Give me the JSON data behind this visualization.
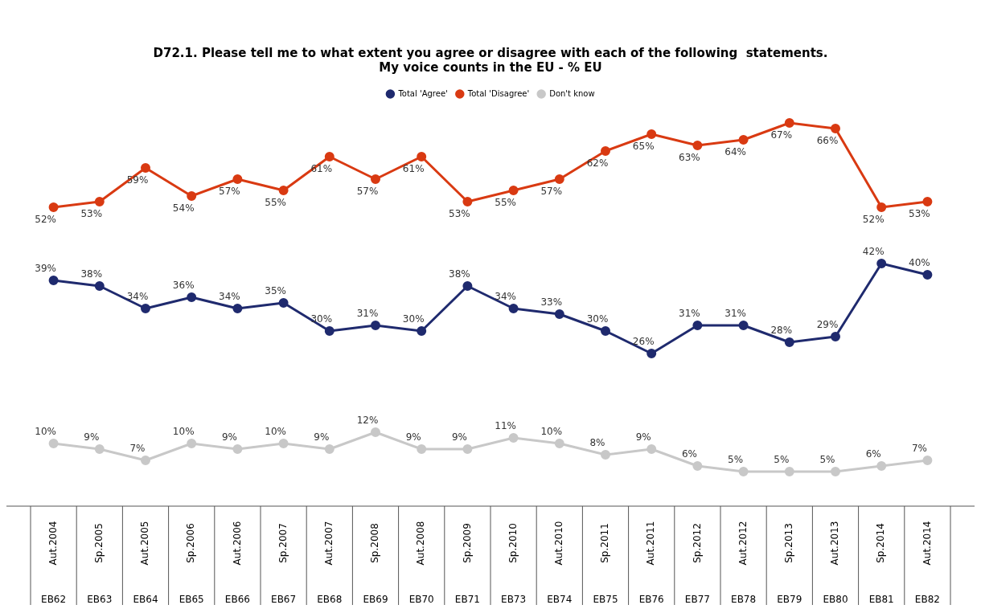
{
  "chart_data": {
    "type": "line",
    "title": "D72.1. Please tell me to what extent you agree or disagree with each of the following  statements.\nMy voice counts in the EU - % EU",
    "categories": [
      "Aut.2004\nEB62",
      "Sp.2005\nEB63",
      "Aut.2005\nEB64",
      "Sp.2006\nEB65",
      "Aut.2006\nEB66",
      "Sp.2007\nEB67",
      "Aut.2007\nEB68",
      "Sp.2008\nEB69",
      "Aut.2008\nEB70",
      "Sp.2009\nEB71",
      "Sp.2010\nEB73",
      "Aut.2010\nEB74",
      "Sp.2011\nEB75",
      "Aut.2011\nEB76",
      "Sp.2012\nEB77",
      "Aut.2012\nEB78",
      "Sp.2013\nEB79",
      "Aut.2013\nEB80",
      "Sp.2014\nEB81",
      "Aut.2014\nEB82"
    ],
    "series": [
      {
        "name": "Total 'Agree'",
        "color": "#1f2a6e",
        "values": [
          39,
          38,
          34,
          36,
          34,
          35,
          30,
          31,
          30,
          38,
          34,
          33,
          30,
          26,
          31,
          31,
          28,
          29,
          42,
          40
        ],
        "value_labels": [
          "39%",
          "38%",
          "34%",
          "36%",
          "34%",
          "35%",
          "30%",
          "31%",
          "30%",
          "38%",
          "34%",
          "33%",
          "30%",
          "26%",
          "31%",
          "31%",
          "28%",
          "29%",
          "42%",
          "40%"
        ]
      },
      {
        "name": "Total 'Disagree'",
        "color": "#d93a12",
        "values": [
          52,
          53,
          59,
          54,
          57,
          55,
          61,
          57,
          61,
          53,
          55,
          57,
          62,
          65,
          63,
          64,
          67,
          66,
          52,
          53
        ],
        "value_labels": [
          "52%",
          "53%",
          "59%",
          "54%",
          "57%",
          "55%",
          "61%",
          "57%",
          "61%",
          "53%",
          "55%",
          "57%",
          "62%",
          "65%",
          "63%",
          "64%",
          "67%",
          "66%",
          "52%",
          "53%"
        ]
      },
      {
        "name": "Don't know",
        "color": "#c8c8c8",
        "values": [
          10,
          9,
          7,
          10,
          9,
          10,
          9,
          12,
          9,
          9,
          11,
          10,
          8,
          9,
          6,
          5,
          5,
          5,
          6,
          7
        ],
        "value_labels": [
          "10%",
          "9%",
          "7%",
          "10%",
          "9%",
          "10%",
          "9%",
          "12%",
          "9%",
          "9%",
          "11%",
          "10%",
          "8%",
          "9%",
          "6%",
          "5%",
          "5%",
          "5%",
          "6%",
          "7%"
        ]
      }
    ],
    "tick_labels": "x",
    "grid": false,
    "legend": "top",
    "marker": "circle",
    "line_style": "solid"
  }
}
